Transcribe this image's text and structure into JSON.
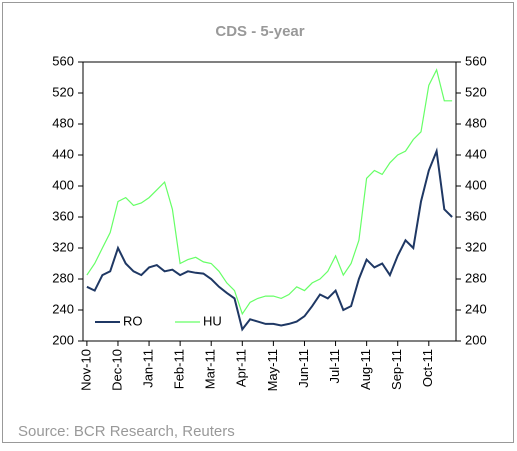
{
  "chart_data": {
    "type": "line",
    "title": "CDS - 5-year",
    "source": "Source: BCR Research, Reuters",
    "categories": [
      "Nov-10",
      null,
      null,
      null,
      "Dec-10",
      null,
      null,
      null,
      "Jan-11",
      null,
      null,
      null,
      "Feb-11",
      null,
      null,
      null,
      "Mar-11",
      null,
      null,
      null,
      "Apr-11",
      null,
      null,
      null,
      "May-11",
      null,
      null,
      null,
      "Jun-11",
      null,
      null,
      null,
      "Jul-11",
      null,
      null,
      null,
      "Aug-11",
      null,
      null,
      null,
      "Sep-11",
      null,
      null,
      null,
      "Oct-11",
      null,
      null,
      null
    ],
    "series": [
      {
        "name": "RO",
        "color": "#1f3864",
        "values": [
          270,
          265,
          285,
          290,
          320,
          300,
          290,
          285,
          295,
          298,
          290,
          292,
          285,
          290,
          288,
          287,
          280,
          270,
          262,
          255,
          215,
          228,
          225,
          222,
          222,
          220,
          222,
          225,
          232,
          245,
          260,
          255,
          265,
          240,
          245,
          280,
          305,
          295,
          300,
          285,
          310,
          330,
          320,
          380,
          420,
          445,
          370,
          360
        ]
      },
      {
        "name": "HU",
        "color": "#66ff66",
        "values": [
          285,
          300,
          320,
          340,
          380,
          385,
          375,
          378,
          385,
          395,
          405,
          370,
          300,
          305,
          308,
          302,
          300,
          290,
          275,
          265,
          235,
          250,
          255,
          258,
          258,
          255,
          260,
          270,
          265,
          275,
          280,
          290,
          310,
          285,
          300,
          330,
          410,
          420,
          415,
          430,
          440,
          445,
          460,
          470,
          530,
          550,
          510,
          510
        ]
      }
    ],
    "ylim": [
      200,
      560
    ],
    "yticks": [
      200,
      240,
      280,
      320,
      360,
      400,
      440,
      480,
      520,
      560
    ],
    "y2lim": [
      200,
      560
    ],
    "y2ticks": [
      200,
      240,
      280,
      320,
      360,
      400,
      440,
      480,
      520,
      560
    ],
    "legend": "bottom-left"
  }
}
